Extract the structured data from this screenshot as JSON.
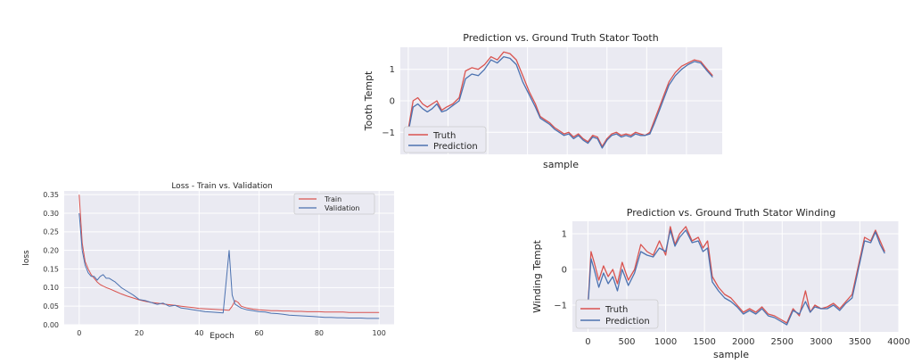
{
  "colors": {
    "truth": "#d9534f",
    "prediction": "#4c72b0",
    "train": "#d9534f",
    "validation": "#4c72b0",
    "plot_bg": "#eaeaf2"
  },
  "chart_data": [
    {
      "id": "tooth",
      "type": "line",
      "title": "Prediction vs. Ground Truth Stator Tooth",
      "xlabel": "sample",
      "ylabel": "Tooth Tempt",
      "xlim": [
        -100,
        3950
      ],
      "ylim": [
        -1.7,
        1.7
      ],
      "grid": true,
      "legend_position": "lower-left",
      "x_ticks": [],
      "y_ticks": [
        -1,
        0,
        1
      ],
      "y_tick_labels": [
        "−1",
        "0",
        "1"
      ],
      "x": [
        0,
        60,
        120,
        180,
        240,
        300,
        360,
        420,
        480,
        560,
        640,
        720,
        800,
        880,
        960,
        1040,
        1120,
        1200,
        1280,
        1360,
        1440,
        1520,
        1600,
        1660,
        1720,
        1780,
        1840,
        1900,
        1960,
        2020,
        2080,
        2140,
        2200,
        2260,
        2320,
        2380,
        2440,
        2500,
        2560,
        2620,
        2680,
        2740,
        2800,
        2860,
        2920,
        2980,
        3040,
        3100,
        3160,
        3220,
        3280,
        3360,
        3440,
        3520,
        3600,
        3680,
        3760,
        3830
      ],
      "series": [
        {
          "name": "Truth",
          "values": [
            -0.9,
            0.0,
            0.1,
            -0.1,
            -0.2,
            -0.1,
            0.0,
            -0.3,
            -0.2,
            -0.1,
            0.1,
            0.95,
            1.05,
            1.0,
            1.15,
            1.4,
            1.3,
            1.55,
            1.5,
            1.3,
            0.8,
            0.3,
            -0.1,
            -0.5,
            -0.6,
            -0.7,
            -0.85,
            -0.95,
            -1.05,
            -1.0,
            -1.15,
            -1.05,
            -1.2,
            -1.3,
            -1.1,
            -1.15,
            -1.45,
            -1.2,
            -1.05,
            -1.0,
            -1.1,
            -1.05,
            -1.1,
            -1.0,
            -1.05,
            -1.1,
            -1.0,
            -0.6,
            -0.2,
            0.2,
            0.6,
            0.9,
            1.1,
            1.2,
            1.3,
            1.25,
            1.0,
            0.8
          ]
        },
        {
          "name": "Prediction",
          "values": [
            -1.0,
            -0.2,
            -0.1,
            -0.25,
            -0.35,
            -0.25,
            -0.1,
            -0.35,
            -0.3,
            -0.15,
            0.0,
            0.7,
            0.85,
            0.8,
            1.0,
            1.3,
            1.2,
            1.4,
            1.35,
            1.15,
            0.6,
            0.2,
            -0.2,
            -0.55,
            -0.65,
            -0.75,
            -0.9,
            -1.0,
            -1.1,
            -1.05,
            -1.2,
            -1.1,
            -1.25,
            -1.35,
            -1.15,
            -1.2,
            -1.5,
            -1.25,
            -1.1,
            -1.05,
            -1.15,
            -1.1,
            -1.15,
            -1.05,
            -1.1,
            -1.1,
            -1.05,
            -0.7,
            -0.3,
            0.1,
            0.5,
            0.8,
            1.0,
            1.15,
            1.25,
            1.2,
            0.95,
            0.75
          ]
        }
      ]
    },
    {
      "id": "loss",
      "type": "line",
      "title": "Loss - Train vs. Validation",
      "xlabel": "Epoch",
      "ylabel": "loss",
      "xlim": [
        -5,
        105
      ],
      "ylim": [
        0.0,
        0.36
      ],
      "grid": true,
      "legend_position": "top-right",
      "x_ticks": [
        0,
        20,
        40,
        60,
        80,
        100
      ],
      "y_ticks": [
        0.0,
        0.05,
        0.1,
        0.15,
        0.2,
        0.25,
        0.3,
        0.35
      ],
      "y_tick_labels": [
        "0.00",
        "0.05",
        "0.10",
        "0.15",
        "0.20",
        "0.25",
        "0.30",
        "0.35"
      ],
      "x": [
        0,
        1,
        2,
        3,
        4,
        5,
        6,
        7,
        8,
        9,
        10,
        12,
        14,
        16,
        18,
        20,
        22,
        24,
        26,
        28,
        30,
        32,
        34,
        36,
        38,
        40,
        42,
        44,
        46,
        48,
        50,
        51,
        52,
        53,
        54,
        56,
        58,
        60,
        62,
        64,
        66,
        68,
        70,
        72,
        74,
        76,
        78,
        80,
        82,
        84,
        86,
        88,
        90,
        92,
        94,
        96,
        98,
        100
      ],
      "series": [
        {
          "name": "Train",
          "values": [
            0.35,
            0.22,
            0.17,
            0.15,
            0.135,
            0.125,
            0.115,
            0.108,
            0.104,
            0.1,
            0.097,
            0.09,
            0.083,
            0.077,
            0.072,
            0.067,
            0.063,
            0.06,
            0.058,
            0.056,
            0.054,
            0.052,
            0.05,
            0.048,
            0.046,
            0.044,
            0.043,
            0.042,
            0.041,
            0.04,
            0.039,
            0.05,
            0.065,
            0.06,
            0.05,
            0.045,
            0.042,
            0.04,
            0.039,
            0.038,
            0.038,
            0.037,
            0.037,
            0.036,
            0.036,
            0.035,
            0.035,
            0.035,
            0.034,
            0.034,
            0.034,
            0.034,
            0.033,
            0.033,
            0.033,
            0.033,
            0.033,
            0.033
          ]
        },
        {
          "name": "Validation",
          "values": [
            0.3,
            0.2,
            0.16,
            0.14,
            0.13,
            0.13,
            0.12,
            0.13,
            0.135,
            0.125,
            0.125,
            0.115,
            0.1,
            0.09,
            0.08,
            0.068,
            0.065,
            0.06,
            0.055,
            0.058,
            0.05,
            0.052,
            0.045,
            0.043,
            0.04,
            0.038,
            0.035,
            0.034,
            0.033,
            0.032,
            0.2,
            0.08,
            0.055,
            0.05,
            0.045,
            0.04,
            0.038,
            0.035,
            0.034,
            0.031,
            0.03,
            0.028,
            0.026,
            0.025,
            0.024,
            0.023,
            0.022,
            0.021,
            0.02,
            0.02,
            0.019,
            0.019,
            0.018,
            0.018,
            0.018,
            0.017,
            0.017,
            0.017
          ]
        }
      ]
    },
    {
      "id": "winding",
      "type": "line",
      "title": "Prediction vs. Ground Truth Stator Winding",
      "xlabel": "sample",
      "ylabel": "Winding Tempt",
      "xlim": [
        -200,
        4000
      ],
      "ylim": [
        -1.75,
        1.35
      ],
      "grid": true,
      "legend_position": "lower-left",
      "x_ticks": [
        0,
        500,
        1000,
        1500,
        2000,
        2500,
        3000,
        3500,
        4000
      ],
      "y_ticks": [
        -1,
        0,
        1
      ],
      "y_tick_labels": [
        "−1",
        "0",
        "1"
      ],
      "x": [
        0,
        40,
        80,
        140,
        200,
        260,
        320,
        380,
        440,
        520,
        600,
        680,
        760,
        840,
        920,
        1000,
        1060,
        1120,
        1180,
        1260,
        1340,
        1420,
        1480,
        1540,
        1600,
        1680,
        1760,
        1840,
        1920,
        2000,
        2080,
        2160,
        2240,
        2320,
        2400,
        2480,
        2560,
        2640,
        2720,
        2800,
        2860,
        2920,
        3000,
        3080,
        3160,
        3240,
        3320,
        3400,
        3480,
        3560,
        3640,
        3700,
        3760,
        3820
      ],
      "series": [
        {
          "name": "Truth",
          "values": [
            -1.0,
            0.5,
            0.2,
            -0.3,
            0.1,
            -0.2,
            0.0,
            -0.4,
            0.2,
            -0.3,
            0.0,
            0.7,
            0.5,
            0.4,
            0.8,
            0.4,
            1.2,
            0.7,
            1.0,
            1.2,
            0.8,
            0.9,
            0.6,
            0.8,
            -0.2,
            -0.5,
            -0.7,
            -0.8,
            -1.0,
            -1.2,
            -1.1,
            -1.2,
            -1.05,
            -1.25,
            -1.3,
            -1.4,
            -1.5,
            -1.1,
            -1.3,
            -0.6,
            -1.2,
            -1.0,
            -1.1,
            -1.05,
            -0.95,
            -1.1,
            -0.9,
            -0.7,
            0.1,
            0.9,
            0.8,
            1.1,
            0.8,
            0.5
          ]
        },
        {
          "name": "Prediction",
          "values": [
            -1.05,
            0.3,
            0.0,
            -0.5,
            -0.1,
            -0.4,
            -0.2,
            -0.6,
            0.0,
            -0.45,
            -0.1,
            0.5,
            0.4,
            0.35,
            0.6,
            0.5,
            1.1,
            0.65,
            0.9,
            1.1,
            0.75,
            0.8,
            0.5,
            0.6,
            -0.35,
            -0.6,
            -0.8,
            -0.9,
            -1.05,
            -1.25,
            -1.15,
            -1.25,
            -1.1,
            -1.3,
            -1.35,
            -1.45,
            -1.55,
            -1.15,
            -1.25,
            -0.9,
            -1.2,
            -1.05,
            -1.1,
            -1.1,
            -1.0,
            -1.15,
            -0.95,
            -0.8,
            0.0,
            0.8,
            0.75,
            1.05,
            0.7,
            0.45
          ]
        }
      ]
    }
  ]
}
